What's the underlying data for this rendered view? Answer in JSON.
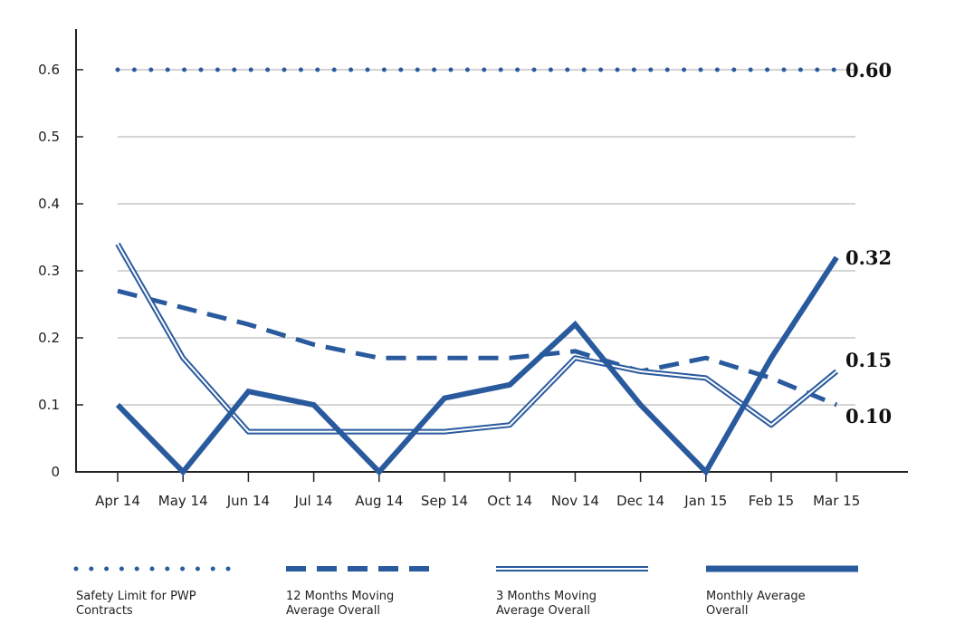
{
  "chart_data": {
    "type": "line",
    "categories": [
      "Apr 14",
      "May 14",
      "Jun 14",
      "Jul 14",
      "Aug 14",
      "Sep 14",
      "Oct 14",
      "Nov 14",
      "Dec 14",
      "Jan 15",
      "Feb 15",
      "Mar 15"
    ],
    "ylim": [
      0,
      0.6
    ],
    "yticks": [
      "0",
      "0.1",
      "0.2",
      "0.3",
      "0.4",
      "0.5",
      "0.6"
    ],
    "grid": true,
    "legend_position": "bottom",
    "color": "#2a5a9e",
    "series": [
      {
        "name": "Safety Limit for PWP Contracts",
        "style": "dotted",
        "values": [
          0.6,
          0.6,
          0.6,
          0.6,
          0.6,
          0.6,
          0.6,
          0.6,
          0.6,
          0.6,
          0.6,
          0.6
        ],
        "end_label": "0.60"
      },
      {
        "name": "12 Months Moving Average Overall",
        "style": "dashed",
        "values": [
          0.27,
          0.245,
          0.22,
          0.19,
          0.17,
          0.17,
          0.17,
          0.18,
          0.15,
          0.17,
          0.14,
          0.1
        ],
        "end_label": "0.10"
      },
      {
        "name": "3 Months Moving Average Overall",
        "style": "double",
        "values": [
          0.34,
          0.17,
          0.06,
          0.06,
          0.06,
          0.06,
          0.07,
          0.17,
          0.15,
          0.14,
          0.07,
          0.15
        ],
        "end_label": "0.15"
      },
      {
        "name": "Monthly Average Overall",
        "style": "thick",
        "values": [
          0.1,
          0,
          0.12,
          0.1,
          0,
          0.11,
          0.13,
          0.22,
          0.1,
          0,
          0.17,
          0.32
        ],
        "end_label": "0.32"
      }
    ],
    "legend_lines": [
      [
        "Safety Limit for PWP",
        "Contracts"
      ],
      [
        "12 Months Moving",
        "Average Overall"
      ],
      [
        "3 Months Moving",
        "Average Overall"
      ],
      [
        "Monthly Average",
        "Overall"
      ]
    ]
  }
}
